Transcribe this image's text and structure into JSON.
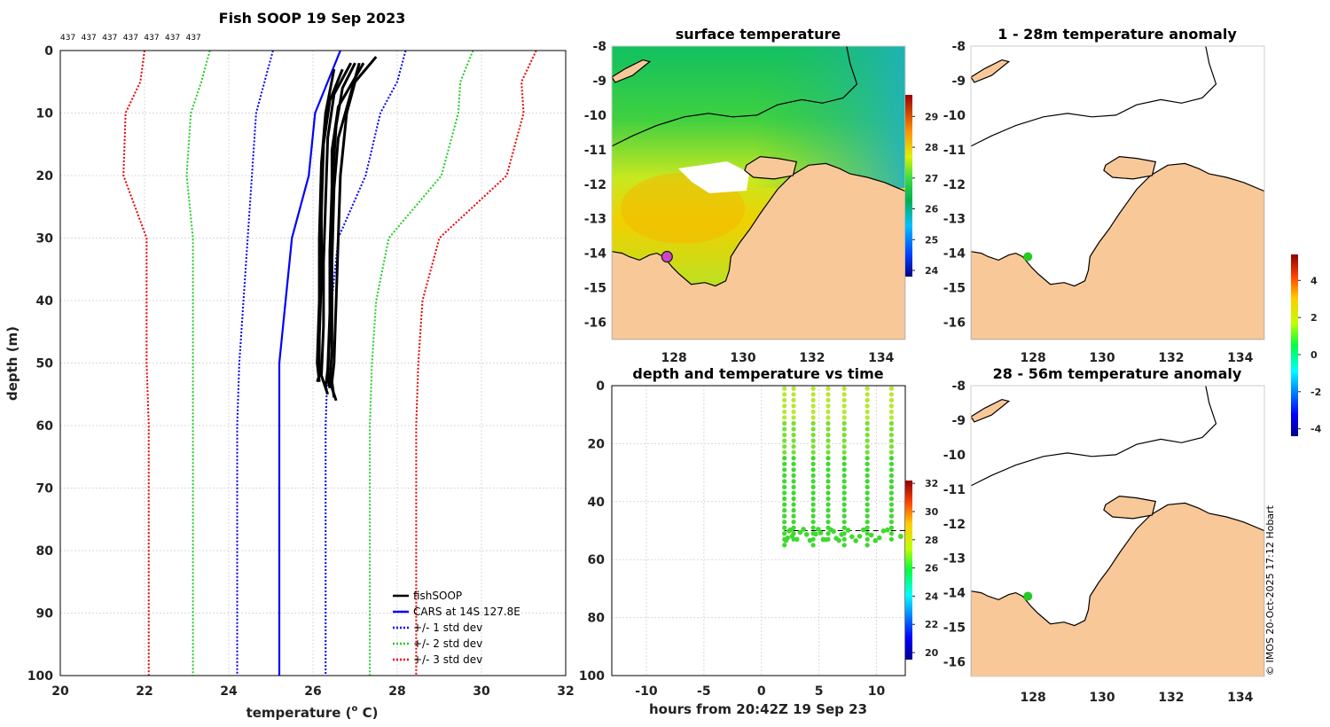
{
  "credit": "© IMOS 20-Oct-2025 17:12 Hobart",
  "chart_data": [
    {
      "id": "profile",
      "type": "line",
      "title": "Fish SOOP 19 Sep 2023",
      "count_labels": [
        "437",
        "437",
        "437",
        "437",
        "437",
        "437",
        "437"
      ],
      "xlabel": "temperature (",
      "xlabel_sup": "o",
      "xlabel_tail": " C)",
      "ylabel": "depth (m)",
      "xlim": [
        20,
        32
      ],
      "ylim": [
        0,
        100
      ],
      "xticks": [
        20,
        22,
        24,
        26,
        28,
        30,
        32
      ],
      "yticks": [
        0,
        10,
        20,
        30,
        40,
        50,
        60,
        70,
        80,
        90,
        100
      ],
      "legend_position": "lower-right",
      "series": [
        {
          "name": "CARS at 14S 127.8E",
          "style": "solid",
          "color": "#0000ff",
          "depth": [
            0,
            5,
            10,
            20,
            30,
            40,
            50,
            60,
            70,
            80,
            90,
            100
          ],
          "temp": [
            26.65,
            26.35,
            26.05,
            25.9,
            25.5,
            25.35,
            25.2,
            25.2,
            25.2,
            25.2,
            25.2,
            25.2
          ]
        },
        {
          "name": "+/- 1 std dev",
          "style": "dotted",
          "color": "#0000ff",
          "depth": [
            0,
            5,
            10,
            20,
            30,
            40,
            50,
            60,
            70,
            80,
            90,
            100
          ],
          "temp": [
            25.05,
            24.85,
            24.65,
            24.55,
            24.45,
            24.35,
            24.25,
            24.2,
            24.2,
            24.2,
            24.2,
            24.2
          ]
        },
        {
          "name": "+/- 1 std dev hi",
          "style": "dotted",
          "color": "#0000ff",
          "depth": [
            0,
            5,
            10,
            20,
            30,
            40,
            50,
            60,
            70,
            80,
            90,
            100
          ],
          "temp": [
            28.2,
            28.0,
            27.6,
            27.25,
            26.6,
            26.45,
            26.35,
            26.3,
            26.3,
            26.3,
            26.3,
            26.3
          ]
        },
        {
          "name": "+/- 2 std dev",
          "style": "dotted",
          "color": "#22cc22",
          "depth": [
            0,
            5,
            10,
            20,
            30,
            40,
            50,
            60,
            70,
            80,
            90,
            100
          ],
          "temp": [
            23.55,
            23.35,
            23.1,
            23.0,
            23.15,
            23.15,
            23.15,
            23.15,
            23.15,
            23.15,
            23.15,
            23.15
          ]
        },
        {
          "name": "+/- 2 std dev hi",
          "style": "dotted",
          "color": "#22cc22",
          "depth": [
            0,
            5,
            10,
            20,
            30,
            40,
            50,
            60,
            70,
            80,
            90,
            100
          ],
          "temp": [
            29.8,
            29.5,
            29.45,
            29.05,
            27.8,
            27.5,
            27.4,
            27.35,
            27.35,
            27.35,
            27.35,
            27.35
          ]
        },
        {
          "name": "+/- 3 std dev",
          "style": "dotted",
          "color": "#ee0000",
          "depth": [
            0,
            5,
            10,
            20,
            30,
            40,
            50,
            60,
            70,
            80,
            90,
            100
          ],
          "temp": [
            22.0,
            21.9,
            21.55,
            21.5,
            22.05,
            22.05,
            22.05,
            22.1,
            22.1,
            22.1,
            22.1,
            22.1
          ]
        },
        {
          "name": "+/- 3 std dev hi",
          "style": "dotted",
          "color": "#ee0000",
          "depth": [
            0,
            5,
            10,
            20,
            30,
            40,
            50,
            60,
            70,
            80,
            90,
            100
          ],
          "temp": [
            31.3,
            30.95,
            31.0,
            30.6,
            29.0,
            28.6,
            28.5,
            28.45,
            28.45,
            28.45,
            28.45,
            28.45
          ]
        }
      ],
      "fishsoop": [
        {
          "depth": [
            1,
            5,
            10,
            20,
            30,
            40,
            50,
            53,
            55.5
          ],
          "temp": [
            27.5,
            27.0,
            26.8,
            26.65,
            26.6,
            26.55,
            26.5,
            26.45,
            26.5
          ]
        },
        {
          "depth": [
            2,
            6,
            12,
            22,
            32,
            42,
            51,
            54
          ],
          "temp": [
            27.0,
            26.7,
            26.55,
            26.45,
            26.4,
            26.4,
            26.35,
            26.3
          ]
        },
        {
          "depth": [
            2,
            7,
            14,
            24,
            34,
            44,
            52,
            55
          ],
          "temp": [
            26.9,
            26.5,
            26.35,
            26.3,
            26.25,
            26.25,
            26.2,
            26.35
          ]
        },
        {
          "depth": [
            3,
            8,
            15,
            26,
            36,
            46,
            52,
            53
          ],
          "temp": [
            26.7,
            26.4,
            26.25,
            26.2,
            26.2,
            26.15,
            26.15,
            26.1
          ]
        },
        {
          "depth": [
            2,
            9,
            16,
            28,
            38,
            48,
            53,
            56
          ],
          "temp": [
            27.2,
            26.6,
            26.45,
            26.45,
            26.45,
            26.45,
            26.4,
            26.55
          ]
        },
        {
          "depth": [
            3,
            10,
            18,
            30,
            40,
            50,
            53
          ],
          "temp": [
            26.5,
            26.3,
            26.2,
            26.15,
            26.15,
            26.1,
            26.15
          ]
        },
        {
          "depth": [
            2,
            8,
            14,
            22,
            34,
            45,
            52,
            54
          ],
          "temp": [
            27.1,
            26.85,
            26.6,
            26.5,
            26.45,
            26.4,
            26.35,
            26.4
          ]
        }
      ],
      "legend": [
        {
          "label": "fishSOOP",
          "color": "#000000",
          "style": "solid"
        },
        {
          "label": "CARS at 14S 127.8E",
          "color": "#0000ff",
          "style": "solid"
        },
        {
          "label": "+/- 1 std dev",
          "color": "#0000ff",
          "style": "dotted"
        },
        {
          "label": "+/- 2 std dev",
          "color": "#22cc22",
          "style": "dotted"
        },
        {
          "label": "+/- 3 std dev",
          "color": "#ee0000",
          "style": "dotted"
        }
      ]
    },
    {
      "id": "sst",
      "type": "heatmap",
      "title": "surface temperature",
      "xlim": [
        126.2,
        134.7
      ],
      "ylim": [
        -16.5,
        -8
      ],
      "xticks": [
        128,
        130,
        132,
        134
      ],
      "yticks": [
        -8,
        -9,
        -10,
        -11,
        -12,
        -13,
        -14,
        -15,
        -16
      ],
      "colorbar": {
        "min": 23.8,
        "max": 29.7,
        "ticks": [
          24,
          25,
          26,
          27,
          28,
          29
        ]
      },
      "marker": {
        "lon": 127.8,
        "lat": -14.1,
        "color": "#cc44cc"
      }
    },
    {
      "id": "timeseries",
      "type": "scatter",
      "title": "depth and temperature vs time",
      "xlabel": "hours from 20:42Z 19 Sep 23",
      "xlim": [
        -13,
        12.5
      ],
      "ylim": [
        0,
        100
      ],
      "xticks": [
        -10,
        -5,
        0,
        5,
        10
      ],
      "yticks": [
        0,
        20,
        40,
        60,
        80,
        100
      ],
      "casts_hours": [
        2.0,
        2.8,
        4.5,
        5.8,
        7.2,
        9.2,
        11.3
      ],
      "max_depth": [
        55,
        54,
        55,
        54,
        55,
        56,
        53
      ],
      "colorbar": {
        "min": 19.5,
        "max": 32.2,
        "ticks": [
          20,
          22,
          24,
          26,
          28,
          30,
          32
        ]
      }
    },
    {
      "id": "anom1",
      "type": "heatmap",
      "title": "1 - 28m temperature anomaly",
      "xlim": [
        126.2,
        134.7
      ],
      "ylim": [
        -16.5,
        -8
      ],
      "xticks": [
        128,
        130,
        132,
        134
      ],
      "yticks": [
        -8,
        -9,
        -10,
        -11,
        -12,
        -13,
        -14,
        -15,
        -16
      ],
      "marker": {
        "lon": 127.85,
        "lat": -14.1,
        "color": "#22cc22"
      }
    },
    {
      "id": "anom2",
      "type": "heatmap",
      "title": "28 - 56m temperature anomaly",
      "xlim": [
        126.2,
        134.7
      ],
      "ylim": [
        -16.5,
        -8
      ],
      "xticks": [
        128,
        130,
        132,
        134
      ],
      "yticks": [
        -8,
        -9,
        -10,
        -11,
        -12,
        -13,
        -14,
        -15,
        -16
      ],
      "marker": {
        "lon": 127.85,
        "lat": -14.1,
        "color": "#22cc22"
      }
    },
    {
      "id": "anom_colorbar",
      "type": "heatmap",
      "colorbar": {
        "min": -4.4,
        "max": 5.4,
        "ticks": [
          -4,
          -2,
          0,
          2,
          4
        ]
      }
    }
  ]
}
